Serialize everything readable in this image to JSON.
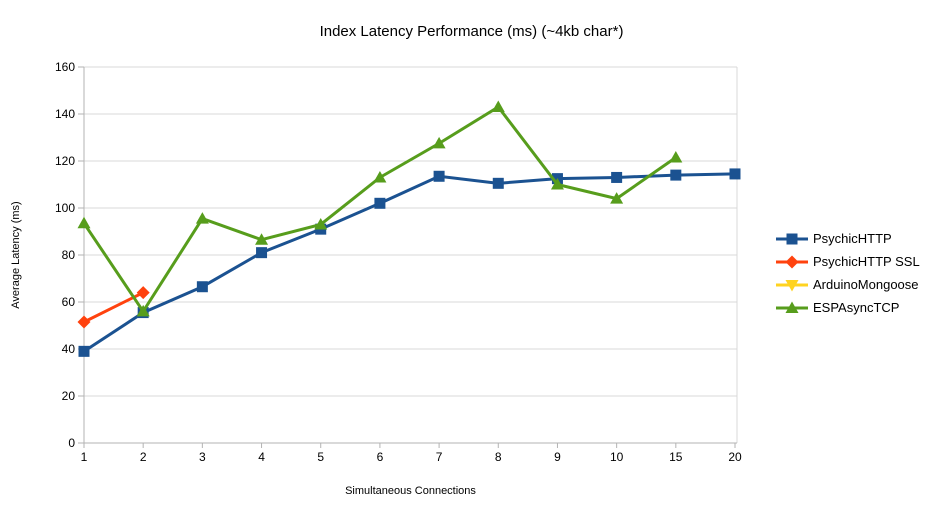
{
  "title": "Index Latency Performance (ms) (~4kb char*)",
  "axes": {
    "x_title": "Simultaneous Connections",
    "y_title": "Average Latency (ms)"
  },
  "style_colors": {
    "gridline": "#d9d9d9",
    "axis_line": "#b3b3b3",
    "background": "#ffffff",
    "text": "#000000"
  },
  "chart_data": {
    "type": "line",
    "title": "Index Latency Performance (ms) (~4kb char*)",
    "xlabel": "Simultaneous Connections",
    "ylabel": "Average Latency (ms)",
    "categories": [
      "1",
      "2",
      "3",
      "4",
      "5",
      "6",
      "7",
      "8",
      "9",
      "10",
      "15",
      "20"
    ],
    "ylim": [
      0,
      160
    ],
    "ytick_step": 20,
    "grid": "horizontal",
    "legend_position": "right",
    "series": [
      {
        "name": "PsychicHTTP",
        "color": "#1B5291",
        "marker": "square",
        "values": [
          39,
          55.5,
          66.5,
          81,
          91,
          102,
          113.5,
          110.5,
          112.5,
          113,
          114,
          114.5
        ]
      },
      {
        "name": "PsychicHTTP SSL",
        "color": "#FF420E",
        "marker": "diamond",
        "values": [
          51.5,
          64,
          null,
          null,
          null,
          null,
          null,
          null,
          null,
          null,
          null,
          null
        ]
      },
      {
        "name": "ArduinoMongoose",
        "color": "#FFD320",
        "marker": "triangle-down",
        "values": [
          null,
          null,
          null,
          null,
          null,
          null,
          null,
          null,
          null,
          null,
          null,
          null
        ]
      },
      {
        "name": "ESPAsyncTCP",
        "color": "#579D1C",
        "marker": "triangle-up",
        "values": [
          93.5,
          56,
          95.5,
          86.5,
          93,
          113,
          127.5,
          143,
          110,
          104,
          121.5,
          null
        ]
      }
    ]
  }
}
